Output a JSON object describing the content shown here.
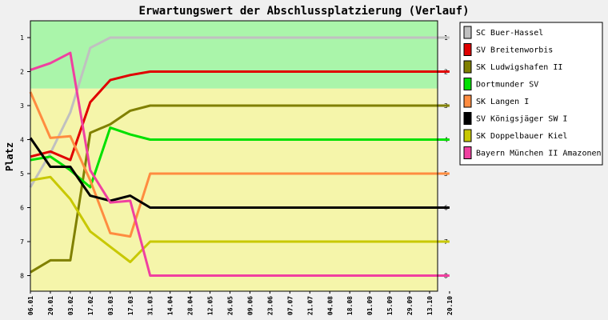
{
  "chart_data": {
    "type": "line",
    "title": "Erwartungswert der Abschlussplatzierung (Verlauf)",
    "ylabel": "Platz",
    "xlabel": "",
    "ylim": [
      1,
      8
    ],
    "y_inverted": true,
    "yticks": [
      1,
      2,
      3,
      4,
      5,
      6,
      7,
      8
    ],
    "grid": false,
    "legend_position": "right",
    "bands": [
      {
        "from": 0.5,
        "to": 2.5,
        "color": "#aaf5aa"
      },
      {
        "from": 2.5,
        "to": 8.5,
        "color": "#f5f5aa"
      }
    ],
    "x": [
      "06.01",
      "20.01",
      "03.02",
      "17.02",
      "03.03",
      "17.03",
      "31.03",
      "14.04",
      "28.04",
      "12.05",
      "26.05",
      "09.06",
      "23.06",
      "07.07",
      "21.07",
      "04.08",
      "18.08",
      "01.09",
      "15.09",
      "29.09",
      "13.10",
      "20.10"
    ],
    "series": [
      {
        "name": "SC Buer-Hassel",
        "color": "#c0c0c0",
        "values": [
          5.4,
          4.4,
          3.2,
          1.3,
          1.0,
          1.0,
          1.0,
          1.0,
          1.0,
          1.0,
          1.0,
          1.0,
          1.0,
          1.0,
          1.0,
          1.0,
          1.0,
          1.0,
          1.0,
          1.0,
          1.0,
          1.0
        ]
      },
      {
        "name": "SV Breitenworbis",
        "color": "#e00000",
        "values": [
          4.5,
          4.35,
          4.6,
          2.9,
          2.25,
          2.1,
          2.0,
          2.0,
          2.0,
          2.0,
          2.0,
          2.0,
          2.0,
          2.0,
          2.0,
          2.0,
          2.0,
          2.0,
          2.0,
          2.0,
          2.0,
          2.0
        ]
      },
      {
        "name": "SK Ludwigshafen II",
        "color": "#808000",
        "values": [
          7.9,
          7.55,
          7.55,
          3.8,
          3.55,
          3.15,
          3.0,
          3.0,
          3.0,
          3.0,
          3.0,
          3.0,
          3.0,
          3.0,
          3.0,
          3.0,
          3.0,
          3.0,
          3.0,
          3.0,
          3.0,
          3.0
        ]
      },
      {
        "name": "Dortmunder SV",
        "color": "#00e000",
        "values": [
          4.6,
          4.5,
          4.9,
          5.4,
          3.65,
          3.85,
          4.0,
          4.0,
          4.0,
          4.0,
          4.0,
          4.0,
          4.0,
          4.0,
          4.0,
          4.0,
          4.0,
          4.0,
          4.0,
          4.0,
          4.0,
          4.0
        ]
      },
      {
        "name": "SK Langen I",
        "color": "#ff8c40",
        "values": [
          2.6,
          3.95,
          3.9,
          5.2,
          6.75,
          6.85,
          5.0,
          5.0,
          5.0,
          5.0,
          5.0,
          5.0,
          5.0,
          5.0,
          5.0,
          5.0,
          5.0,
          5.0,
          5.0,
          5.0,
          5.0,
          5.0
        ]
      },
      {
        "name": "SV Königsjäger SW I",
        "color": "#000000",
        "values": [
          3.95,
          4.8,
          4.8,
          5.65,
          5.8,
          5.65,
          6.0,
          6.0,
          6.0,
          6.0,
          6.0,
          6.0,
          6.0,
          6.0,
          6.0,
          6.0,
          6.0,
          6.0,
          6.0,
          6.0,
          6.0,
          6.0
        ]
      },
      {
        "name": "SK Doppelbauer Kiel",
        "color": "#c8c800",
        "values": [
          5.2,
          5.1,
          5.75,
          6.7,
          7.15,
          7.6,
          7.0,
          7.0,
          7.0,
          7.0,
          7.0,
          7.0,
          7.0,
          7.0,
          7.0,
          7.0,
          7.0,
          7.0,
          7.0,
          7.0,
          7.0,
          7.0
        ]
      },
      {
        "name": "Bayern München II Amazonen",
        "color": "#f040a0",
        "values": [
          1.95,
          1.75,
          1.45,
          4.9,
          5.85,
          5.8,
          8.0,
          8.0,
          8.0,
          8.0,
          8.0,
          8.0,
          8.0,
          8.0,
          8.0,
          8.0,
          8.0,
          8.0,
          8.0,
          8.0,
          8.0,
          8.0
        ]
      }
    ]
  }
}
